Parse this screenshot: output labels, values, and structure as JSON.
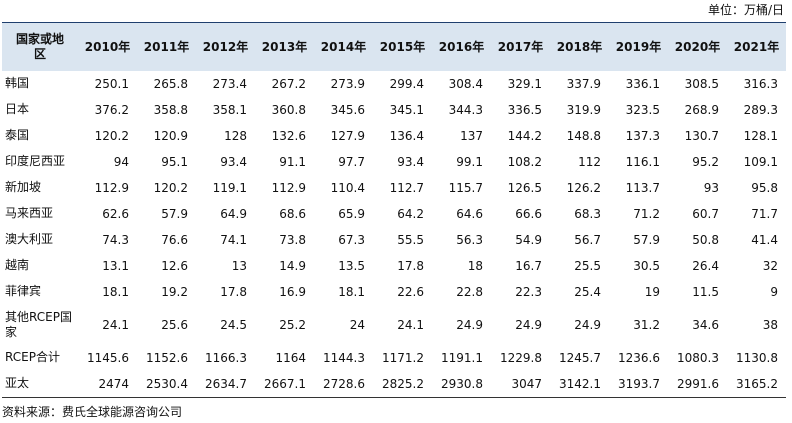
{
  "unit": "单位：万桶/日",
  "table": {
    "header": [
      "国家或地区",
      "2010年",
      "2011年",
      "2012年",
      "2013年",
      "2014年",
      "2015年",
      "2016年",
      "2017年",
      "2018年",
      "2019年",
      "2020年",
      "2021年"
    ],
    "rows": [
      [
        "韩国",
        "250.1",
        "265.8",
        "273.4",
        "267.2",
        "273.9",
        "299.4",
        "308.4",
        "329.1",
        "337.9",
        "336.1",
        "308.5",
        "316.3"
      ],
      [
        "日本",
        "376.2",
        "358.8",
        "358.1",
        "360.8",
        "345.6",
        "345.1",
        "344.3",
        "336.5",
        "319.9",
        "323.5",
        "268.9",
        "289.3"
      ],
      [
        "泰国",
        "120.2",
        "120.9",
        "128",
        "132.6",
        "127.9",
        "136.4",
        "137",
        "144.2",
        "148.8",
        "137.3",
        "130.7",
        "128.1"
      ],
      [
        "印度尼西亚",
        "94",
        "95.1",
        "93.4",
        "91.1",
        "97.7",
        "93.4",
        "99.1",
        "108.2",
        "112",
        "116.1",
        "95.2",
        "109.1"
      ],
      [
        "新加坡",
        "112.9",
        "120.2",
        "119.1",
        "112.9",
        "110.4",
        "112.7",
        "115.7",
        "126.5",
        "126.2",
        "113.7",
        "93",
        "95.8"
      ],
      [
        "马来西亚",
        "62.6",
        "57.9",
        "64.9",
        "68.6",
        "65.9",
        "64.2",
        "64.6",
        "66.6",
        "68.3",
        "71.2",
        "60.7",
        "71.7"
      ],
      [
        "澳大利亚",
        "74.3",
        "76.6",
        "74.1",
        "73.8",
        "67.3",
        "55.5",
        "56.3",
        "54.9",
        "56.7",
        "57.9",
        "50.8",
        "41.4"
      ],
      [
        "越南",
        "13.1",
        "12.6",
        "13",
        "14.9",
        "13.5",
        "17.8",
        "18",
        "16.7",
        "25.5",
        "30.5",
        "26.4",
        "32"
      ],
      [
        "菲律宾",
        "18.1",
        "19.2",
        "17.8",
        "16.9",
        "18.1",
        "22.6",
        "22.8",
        "22.3",
        "25.4",
        "19",
        "11.5",
        "9"
      ],
      [
        "其他RCEP国家",
        "24.1",
        "25.6",
        "24.5",
        "25.2",
        "24",
        "24.1",
        "24.9",
        "24.9",
        "24.9",
        "31.2",
        "34.6",
        "38"
      ],
      [
        "RCEP合计",
        "1145.6",
        "1152.6",
        "1166.3",
        "1164",
        "1144.3",
        "1171.2",
        "1191.1",
        "1229.8",
        "1245.7",
        "1236.6",
        "1080.3",
        "1130.8"
      ],
      [
        "亚太",
        "2474",
        "2530.4",
        "2634.7",
        "2667.1",
        "2728.6",
        "2825.2",
        "2930.8",
        "3047",
        "3142.1",
        "3193.7",
        "2991.6",
        "3165.2"
      ]
    ]
  },
  "source": "资料来源：费氏全球能源咨询公司"
}
